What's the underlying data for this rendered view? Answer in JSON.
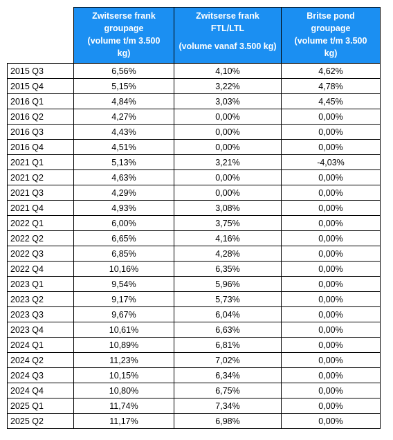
{
  "headers": {
    "col1": {
      "line1": "Zwitserse frank",
      "line2": "groupage",
      "line3": "(volume t/m 3.500",
      "line4": "kg)"
    },
    "col2": {
      "line1": "Zwitserse frank",
      "line2": "FTL/LTL",
      "line3": "(volume vanaf 3.500 kg)"
    },
    "col3": {
      "line1": "Britse pond",
      "line2": "groupage",
      "line3": "(volume t/m 3.500",
      "line4": "kg)"
    }
  },
  "rows": [
    [
      "2015 Q3",
      "6,56%",
      "4,10%",
      "4,62%"
    ],
    [
      "2015 Q4",
      "5,15%",
      "3,22%",
      "4,78%"
    ],
    [
      "2016 Q1",
      "4,84%",
      "3,03%",
      "4,45%"
    ],
    [
      "2016 Q2",
      "4,27%",
      "0,00%",
      "0,00%"
    ],
    [
      "2016 Q3",
      "4,43%",
      "0,00%",
      "0,00%"
    ],
    [
      "2016 Q4",
      "4,51%",
      "0,00%",
      "0,00%"
    ],
    [
      "2021 Q1",
      "5,13%",
      "3,21%",
      "-4,03%"
    ],
    [
      "2021 Q2",
      "4,63%",
      "0,00%",
      "0,00%"
    ],
    [
      "2021 Q3",
      "4,29%",
      "0,00%",
      "0,00%"
    ],
    [
      "2021 Q4",
      "4,93%",
      "3,08%",
      "0,00%"
    ],
    [
      "2022 Q1",
      "6,00%",
      "3,75%",
      "0,00%"
    ],
    [
      "2022 Q2",
      "6,65%",
      "4,16%",
      "0,00%"
    ],
    [
      "2022 Q3",
      "6,85%",
      "4,28%",
      "0,00%"
    ],
    [
      "2022 Q4",
      "10,16%",
      "6,35%",
      "0,00%"
    ],
    [
      "2023 Q1",
      "9,54%",
      "5,96%",
      "0,00%"
    ],
    [
      "2023 Q2",
      "9,17%",
      "5,73%",
      "0,00%"
    ],
    [
      "2023 Q3",
      "9,67%",
      "6,04%",
      "0,00%"
    ],
    [
      "2023 Q4",
      "10,61%",
      "6,63%",
      "0,00%"
    ],
    [
      "2024 Q1",
      "10,89%",
      "6,81%",
      "0,00%"
    ],
    [
      "2024 Q2",
      "11,23%",
      "7,02%",
      "0,00%"
    ],
    [
      "2024 Q3",
      "10,15%",
      "6,34%",
      "0,00%"
    ],
    [
      "2024 Q4",
      "10,80%",
      "6,75%",
      "0,00%"
    ],
    [
      "2025 Q1",
      "11,74%",
      "7,34%",
      "0,00%"
    ],
    [
      "2025 Q2",
      "11,17%",
      "6,98%",
      "0,00%"
    ]
  ]
}
